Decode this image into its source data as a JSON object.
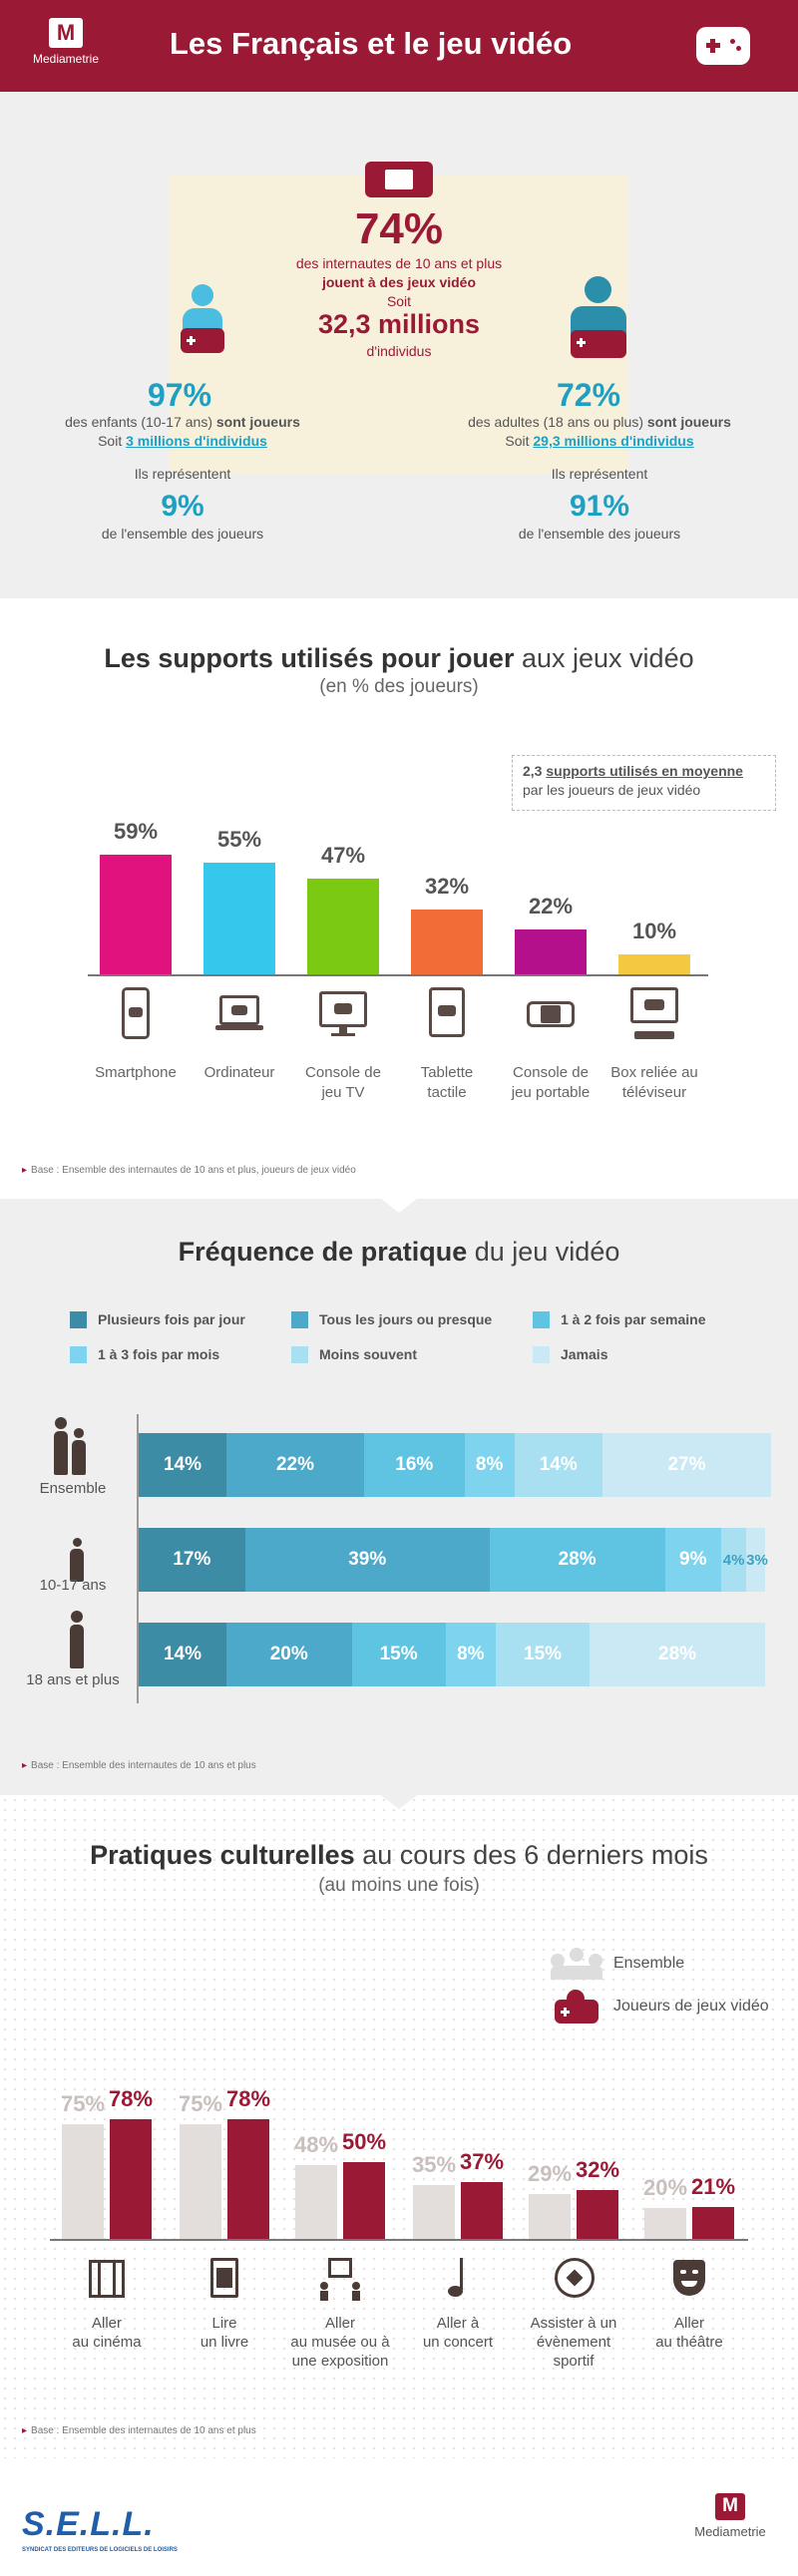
{
  "header": {
    "brand": "Mediametrie",
    "title": "Les Français et le jeu vidéo"
  },
  "overview": {
    "main_pct": "74%",
    "main_line1": "des internautes de 10 ans et plus",
    "main_line2": "jouent à des jeux vidéo",
    "soit": "Soit",
    "main_millions": "32,3 millions",
    "main_individus": "d'individus",
    "kids": {
      "pct": "97%",
      "line1": "des enfants (10-17 ans)",
      "line1_bold": "sont joueurs",
      "line2_prefix": "Soit",
      "line2_link": "3 millions d'individus",
      "represent": "Ils représentent",
      "share": "9%",
      "share_label": "de l'ensemble des joueurs"
    },
    "adults": {
      "pct": "72%",
      "line1": "des adultes (18 ans ou plus)",
      "line1_bold": "sont joueurs",
      "line2_prefix": "Soit",
      "line2_link": "29,3 millions d'individus",
      "represent": "Ils représentent",
      "share": "91%",
      "share_label": "de l'ensemble des joueurs"
    }
  },
  "supports": {
    "title_bold": "Les supports utilisés pour jouer",
    "title_rest": "aux jeux vidéo",
    "subtitle": "(en % des joueurs)",
    "note_bold": "2,3",
    "note_link": "supports utilisés en moyenne",
    "note_rest": "par les joueurs de jeux vidéo",
    "base": "Base : Ensemble des internautes de 10 ans et plus, joueurs de jeux vidéo"
  },
  "frequence": {
    "title_bold": "Fréquence de pratique",
    "title_rest": "du jeu vidéo",
    "base": "Base : Ensemble des internautes de 10 ans et plus"
  },
  "culture": {
    "title_bold": "Pratiques culturelles",
    "title_rest": "au cours des 6 derniers mois",
    "subtitle": "(au moins une fois)",
    "base": "Base : Ensemble des internautes de 10 ans et plus"
  },
  "footer": {
    "sell": "S.E.L.L.",
    "sell_sub": "SYNDICAT DES EDITEURS DE LOGICIELS DE LOISIRS",
    "brand": "Mediametrie"
  },
  "chart_data": [
    {
      "type": "bar",
      "title": "Les supports utilisés pour jouer aux jeux vidéo",
      "subtitle": "(en % des joueurs)",
      "categories": [
        "Smartphone",
        "Ordinateur",
        "Console de jeu TV",
        "Tablette tactile",
        "Console de jeu portable",
        "Box reliée au téléviseur"
      ],
      "values": [
        59,
        55,
        47,
        32,
        22,
        10
      ],
      "value_labels": [
        "59%",
        "55%",
        "47%",
        "32%",
        "22%",
        "10%"
      ],
      "category_lines": [
        [
          "Smartphone"
        ],
        [
          "Ordinateur"
        ],
        [
          "Console de",
          "jeu TV"
        ],
        [
          "Tablette",
          "tactile"
        ],
        [
          "Console de",
          "jeu portable"
        ],
        [
          "Box reliée au",
          "téléviseur"
        ]
      ],
      "colors": [
        "#e0127e",
        "#36c8ec",
        "#7cc913",
        "#f26d35",
        "#b5108c",
        "#f5c842"
      ],
      "ylim": [
        0,
        65
      ]
    },
    {
      "type": "bar",
      "subtype": "stacked-horizontal",
      "title": "Fréquence de pratique du jeu vidéo",
      "categories": [
        "Ensemble",
        "10-17 ans",
        "18 ans et plus"
      ],
      "series": [
        {
          "name": "Plusieurs fois par jour",
          "values": [
            14,
            17,
            14
          ],
          "color": "#3d8ca6"
        },
        {
          "name": "Tous les jours ou presque",
          "values": [
            22,
            39,
            20
          ],
          "color": "#4ca9c9"
        },
        {
          "name": "1 à 2 fois par semaine",
          "values": [
            16,
            28,
            15
          ],
          "color": "#5fc3e2"
        },
        {
          "name": "1 à 3 fois par mois",
          "values": [
            8,
            9,
            8
          ],
          "color": "#7ed4ee"
        },
        {
          "name": "Moins souvent",
          "values": [
            14,
            4,
            15
          ],
          "color": "#a8e0f2"
        },
        {
          "name": "Jamais",
          "values": [
            27,
            3,
            28
          ],
          "color": "#cbe9f4"
        }
      ]
    },
    {
      "type": "bar",
      "title": "Pratiques culturelles au cours des 6 derniers mois",
      "subtitle": "(au moins une fois)",
      "categories": [
        "Aller au cinéma",
        "Lire un livre",
        "Aller au musée ou à une exposition",
        "Aller à un concert",
        "Assister à un évènement sportif",
        "Aller au théâtre"
      ],
      "category_lines": [
        [
          "Aller",
          "au cinéma"
        ],
        [
          "Lire",
          "un livre"
        ],
        [
          "Aller",
          "au musée ou à",
          "une exposition"
        ],
        [
          "Aller à",
          "un concert"
        ],
        [
          "Assister à un",
          "évènement",
          "sportif"
        ],
        [
          "Aller",
          "au théâtre"
        ]
      ],
      "series": [
        {
          "name": "Ensemble",
          "values": [
            75,
            75,
            48,
            35,
            29,
            20
          ],
          "color": "#e3dedc"
        },
        {
          "name": "Joueurs de jeux vidéo",
          "values": [
            78,
            78,
            50,
            37,
            32,
            21
          ],
          "color": "#9a1a36"
        }
      ],
      "ylim": [
        0,
        80
      ]
    }
  ]
}
